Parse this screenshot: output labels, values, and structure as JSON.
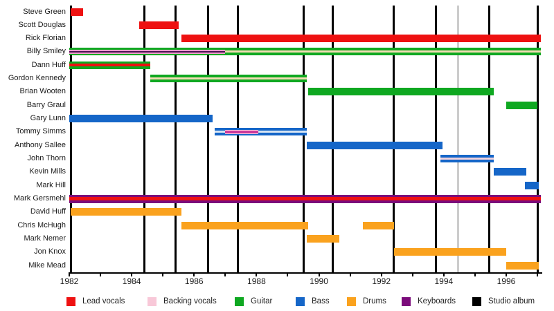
{
  "background": "#ffffff",
  "palette": {
    "lead_vocals": "#EE1111",
    "backing_vocals_overlay": "#F0A0CE",
    "backing_vocals_legend": "#F8C8D8",
    "guitar": "#0FA821",
    "bass": "#1566C8",
    "drums": "#FAA21E",
    "keyboards": "#7B0B7B",
    "studio_album": "#000000",
    "marker_gray": "#CCCCCC",
    "cream_stripe": "#F4DDB5",
    "lightblue_stripe": "#D8E5F3",
    "pink_stripe": "#F2D3DC",
    "dark_purple_center": "#4A1050",
    "magenta_center": "#C02090"
  },
  "legend": {
    "items": [
      {
        "label": "Lead vocals",
        "color": "#EE1111"
      },
      {
        "label": "Backing vocals",
        "color": "#F8C8D8"
      },
      {
        "label": "Guitar",
        "color": "#0FA821"
      },
      {
        "label": "Bass",
        "color": "#1566C8"
      },
      {
        "label": "Drums",
        "color": "#FAA21E"
      },
      {
        "label": "Keyboards",
        "color": "#7B0B7B"
      },
      {
        "label": "Studio album",
        "color": "#000000"
      }
    ]
  },
  "chart_data": {
    "type": "timeline",
    "x_axis": {
      "start": 1982,
      "end": 1997.1,
      "tick_years": [
        1982,
        1983,
        1984,
        1985,
        1986,
        1987,
        1988,
        1989,
        1990,
        1991,
        1992,
        1993,
        1994,
        1995,
        1996,
        1997
      ],
      "label_years": [
        1982,
        1984,
        1986,
        1988,
        1990,
        1992,
        1994,
        1996
      ]
    },
    "album_lines": [
      1982.05,
      1984.4,
      1985.4,
      1986.45,
      1987.4,
      1989.5,
      1990.45,
      1992.4,
      1993.75,
      1995.45,
      1997.0
    ],
    "gray_marker_line": 1994.45,
    "members": [
      {
        "name": "Steve Green",
        "bars": [
          {
            "start": 1982.05,
            "end": 1982.45,
            "fill": "#EE1111"
          }
        ]
      },
      {
        "name": "Scott Douglas",
        "bars": [
          {
            "start": 1984.25,
            "end": 1985.5,
            "fill": "#EE1111"
          }
        ]
      },
      {
        "name": "Rick Florian",
        "bars": [
          {
            "start": 1985.6,
            "end": 1997.1,
            "fill": "#EE1111"
          }
        ]
      },
      {
        "name": "Billy Smiley",
        "bars": [
          {
            "start": 1982.0,
            "end": 1997.1,
            "fill": "#0FA821",
            "stripe": {
              "h": 3,
              "color": "#F4DDB5"
            },
            "overlay": {
              "start": 1982.0,
              "end": 1987.0,
              "h": 6,
              "color": "#F0A0CE",
              "center": {
                "h": 2,
                "color": "#4A1050"
              }
            }
          }
        ]
      },
      {
        "name": "Dann Huff",
        "bars": [
          {
            "start": 1982.0,
            "end": 1984.6,
            "fill": "#0FA821",
            "stripe": {
              "h": 4,
              "color": "#EE1111"
            }
          }
        ]
      },
      {
        "name": "Gordon Kennedy",
        "bars": [
          {
            "start": 1984.6,
            "end": 1989.6,
            "fill": "#0FA821",
            "stripe": {
              "h": 3,
              "color": "#F4DDB5"
            }
          }
        ]
      },
      {
        "name": "Brian Wooten",
        "bars": [
          {
            "start": 1989.65,
            "end": 1995.6,
            "fill": "#0FA821"
          }
        ]
      },
      {
        "name": "Barry Graul",
        "bars": [
          {
            "start": 1996.0,
            "end": 1997.0,
            "fill": "#0FA821"
          }
        ]
      },
      {
        "name": "Gary Lunn",
        "bars": [
          {
            "start": 1982.0,
            "end": 1986.6,
            "fill": "#1566C8"
          }
        ]
      },
      {
        "name": "Tommy Simms",
        "bars": [
          {
            "start": 1986.65,
            "end": 1989.6,
            "fill": "#1566C8",
            "stripe": {
              "h": 3,
              "color": "#D8E5F3"
            },
            "overlay": {
              "start": 1987.0,
              "end": 1988.05,
              "h": 6,
              "color": "#F0A0CE",
              "center": {
                "h": 2,
                "color": "#C02090"
              }
            }
          }
        ]
      },
      {
        "name": "Anthony Sallee",
        "bars": [
          {
            "start": 1989.6,
            "end": 1993.95,
            "fill": "#1566C8"
          }
        ]
      },
      {
        "name": "John Thorn",
        "bars": [
          {
            "start": 1993.9,
            "end": 1995.6,
            "fill": "#1566C8",
            "stripe": {
              "h": 3,
              "color": "#F2D3DC"
            }
          }
        ]
      },
      {
        "name": "Kevin Mills",
        "bars": [
          {
            "start": 1995.6,
            "end": 1996.65,
            "fill": "#1566C8"
          }
        ]
      },
      {
        "name": "Mark Hill",
        "bars": [
          {
            "start": 1996.6,
            "end": 1997.05,
            "fill": "#1566C8"
          }
        ]
      },
      {
        "name": "Mark Gersmehl",
        "bars": [
          {
            "start": 1982.0,
            "end": 1997.1,
            "fill": "#7B0B7B",
            "h": 12,
            "stripe": {
              "h": 5,
              "color": "#EE1111"
            }
          }
        ]
      },
      {
        "name": "David Huff",
        "bars": [
          {
            "start": 1982.05,
            "end": 1985.6,
            "fill": "#FAA21E"
          }
        ]
      },
      {
        "name": "Chris McHugh",
        "bars": [
          {
            "start": 1985.6,
            "end": 1989.65,
            "fill": "#FAA21E"
          },
          {
            "start": 1991.4,
            "end": 1992.4,
            "fill": "#FAA21E"
          }
        ]
      },
      {
        "name": "Mark Nemer",
        "bars": [
          {
            "start": 1989.6,
            "end": 1990.65,
            "fill": "#FAA21E"
          }
        ]
      },
      {
        "name": "Jon Knox",
        "bars": [
          {
            "start": 1992.4,
            "end": 1996.0,
            "fill": "#FAA21E"
          }
        ]
      },
      {
        "name": "Mike Mead",
        "bars": [
          {
            "start": 1996.0,
            "end": 1997.05,
            "fill": "#FAA21E"
          }
        ]
      }
    ]
  }
}
